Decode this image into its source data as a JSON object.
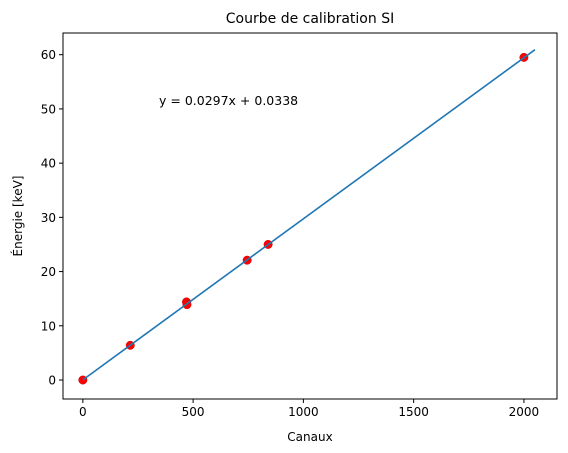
{
  "chart_data": {
    "type": "scatter",
    "title": "Courbe de calibration SI",
    "xlabel": "Canaux",
    "ylabel": "Énergie [keV]",
    "xlim": [
      -90,
      2150
    ],
    "ylim": [
      -3.5,
      64
    ],
    "xticks": [
      0,
      500,
      1000,
      1500,
      2000
    ],
    "yticks": [
      0,
      10,
      20,
      30,
      40,
      50,
      60
    ],
    "grid": false,
    "annotation": "y = 0.0297x + 0.0338",
    "series": [
      {
        "kind": "scatter",
        "color": "#ff0000",
        "x": [
          0,
          215,
          470,
          472,
          745,
          840,
          2000
        ],
        "y": [
          0.0,
          6.4,
          14.4,
          13.9,
          22.1,
          25.0,
          59.5
        ]
      },
      {
        "kind": "line",
        "color": "#1f77b4",
        "x": [
          0,
          2050
        ],
        "y": [
          0.0338,
          60.9188
        ]
      }
    ]
  }
}
